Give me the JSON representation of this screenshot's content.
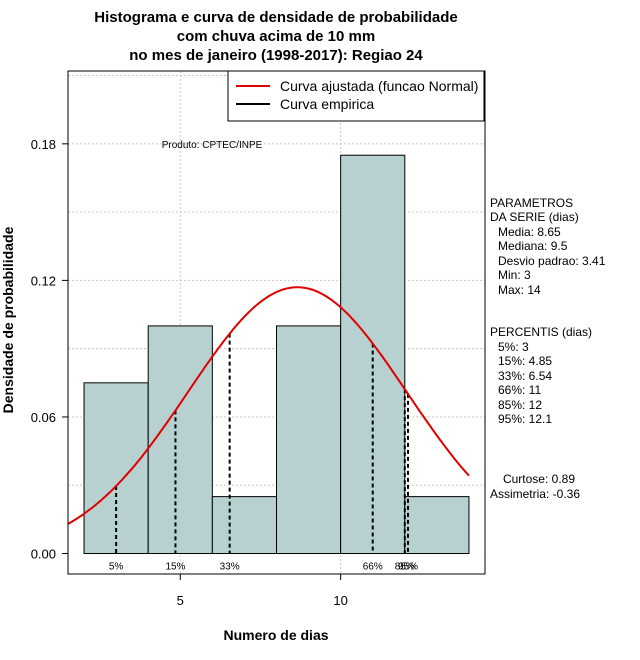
{
  "chart_data": {
    "type": "bar",
    "title_lines": [
      "Histograma e curva de densidade de probabilidade",
      "com chuva acima de 10 mm",
      "no mes de janeiro (1998-2017): Regiao 24"
    ],
    "xlabel": "Numero de dias",
    "ylabel": "Densidade de probabilidade",
    "xlim": [
      1.5,
      14.5
    ],
    "ylim": [
      -0.009,
      0.212
    ],
    "x_ticks": [
      5,
      10
    ],
    "y_ticks": [
      0.0,
      0.06,
      0.12,
      0.18
    ],
    "y_tick_labels": [
      "0.00",
      "0.06",
      "0.12",
      "0.18"
    ],
    "grid": true,
    "bins": [
      {
        "start": 2,
        "end": 4,
        "density": 0.075
      },
      {
        "start": 4,
        "end": 6,
        "density": 0.1
      },
      {
        "start": 6,
        "end": 8,
        "density": 0.025
      },
      {
        "start": 8,
        "end": 10,
        "density": 0.1
      },
      {
        "start": 10,
        "end": 12,
        "density": 0.175
      },
      {
        "start": 12,
        "end": 14,
        "density": 0.025
      }
    ],
    "bar_color": "#b7d0d0",
    "normal_curve": {
      "mean": 8.65,
      "sd": 3.41,
      "color": "#e00000"
    },
    "legend": [
      {
        "label": "Curva ajustada (funcao Normal)",
        "color": "#e00000"
      },
      {
        "label": "Curva empirica",
        "color": "#000000"
      }
    ],
    "percentile_lines": [
      {
        "label": "5%",
        "x": 3
      },
      {
        "label": "15%",
        "x": 4.85
      },
      {
        "label": "33%",
        "x": 6.54
      },
      {
        "label": "66%",
        "x": 11
      },
      {
        "label": "85%",
        "x": 12
      },
      {
        "label": "95%",
        "x": 12.1
      }
    ],
    "annotation": "Produto: CPTEC/INPE",
    "parameters": {
      "header": [
        "PARAMETROS",
        "DA SERIE (dias)"
      ],
      "lines": [
        "Media: 8.65",
        "Mediana: 9.5",
        "Desvio padrao: 3.41",
        "Min: 3",
        "Max: 14"
      ]
    },
    "percentis": {
      "header": "PERCENTIS (dias)",
      "lines": [
        "5%: 3",
        "15%: 4.85",
        "33%: 6.54",
        "66%: 11",
        "85%: 12",
        "95%: 12.1"
      ]
    },
    "shape": {
      "lines": [
        "Curtose: 0.89",
        "Assimetria: -0.36"
      ]
    }
  }
}
